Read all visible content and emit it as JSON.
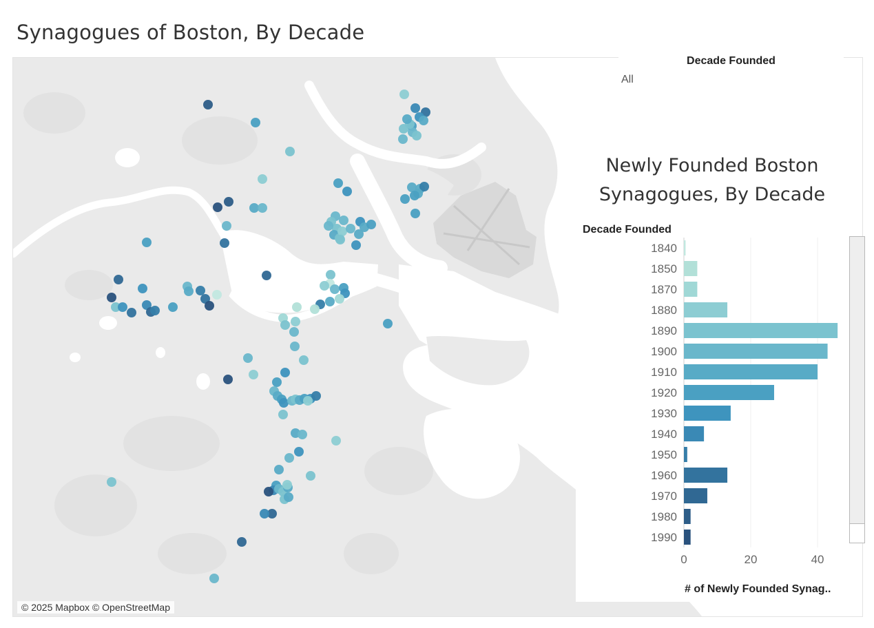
{
  "dashboard": {
    "title": "Synagogues of Boston, By Decade"
  },
  "map": {
    "attribution": "© 2025 Mapbox © OpenStreetMap",
    "colors": {
      "land": "#eaeaea",
      "water": "#ffffff",
      "park": "#e2e2e2",
      "airport": "#d9d9d9"
    },
    "decade_colors": {
      "1840": "#c2e8e0",
      "1850": "#b2e0d8",
      "1870": "#a0d8d6",
      "1880": "#8dcdd3",
      "1890": "#7bc3cf",
      "1900": "#6ab7cb",
      "1910": "#58abc6",
      "1920": "#4aa0c2",
      "1930": "#3e94be",
      "1940": "#3a89b5",
      "1950": "#367ea9",
      "1960": "#33739e",
      "1970": "#306893",
      "1980": "#2d5d88",
      "1990": "#2a527d"
    }
  },
  "filter": {
    "title": "Decade Founded",
    "value": "All"
  },
  "chart": {
    "title_line1": "Newly Founded Boston",
    "title_line2": "Synagogues, By Decade"
  },
  "chart_data": {
    "type": "bar",
    "orientation": "horizontal",
    "title": "Newly Founded Boston Synagogues, By Decade",
    "category_header": "Decade Founded",
    "xlabel": "# of Newly Founded Synag..",
    "categories": [
      "1840",
      "1850",
      "1870",
      "1880",
      "1890",
      "1900",
      "1910",
      "1920",
      "1930",
      "1940",
      "1950",
      "1960",
      "1970",
      "1980",
      "1990"
    ],
    "values": [
      0.5,
      4,
      4,
      13,
      46,
      43,
      40,
      27,
      14,
      6,
      1,
      13,
      7,
      2,
      2
    ],
    "colors": [
      "#c2e8e0",
      "#b2e0d8",
      "#a0d8d6",
      "#8dcdd3",
      "#7bc3cf",
      "#6ab7cb",
      "#58abc6",
      "#4aa0c2",
      "#3e94be",
      "#3a89b5",
      "#367ea9",
      "#33739e",
      "#306893",
      "#2d5d88",
      "#2a527d"
    ],
    "xticks": [
      0,
      20,
      40
    ],
    "xlim": [
      0,
      47
    ],
    "grid": true
  }
}
